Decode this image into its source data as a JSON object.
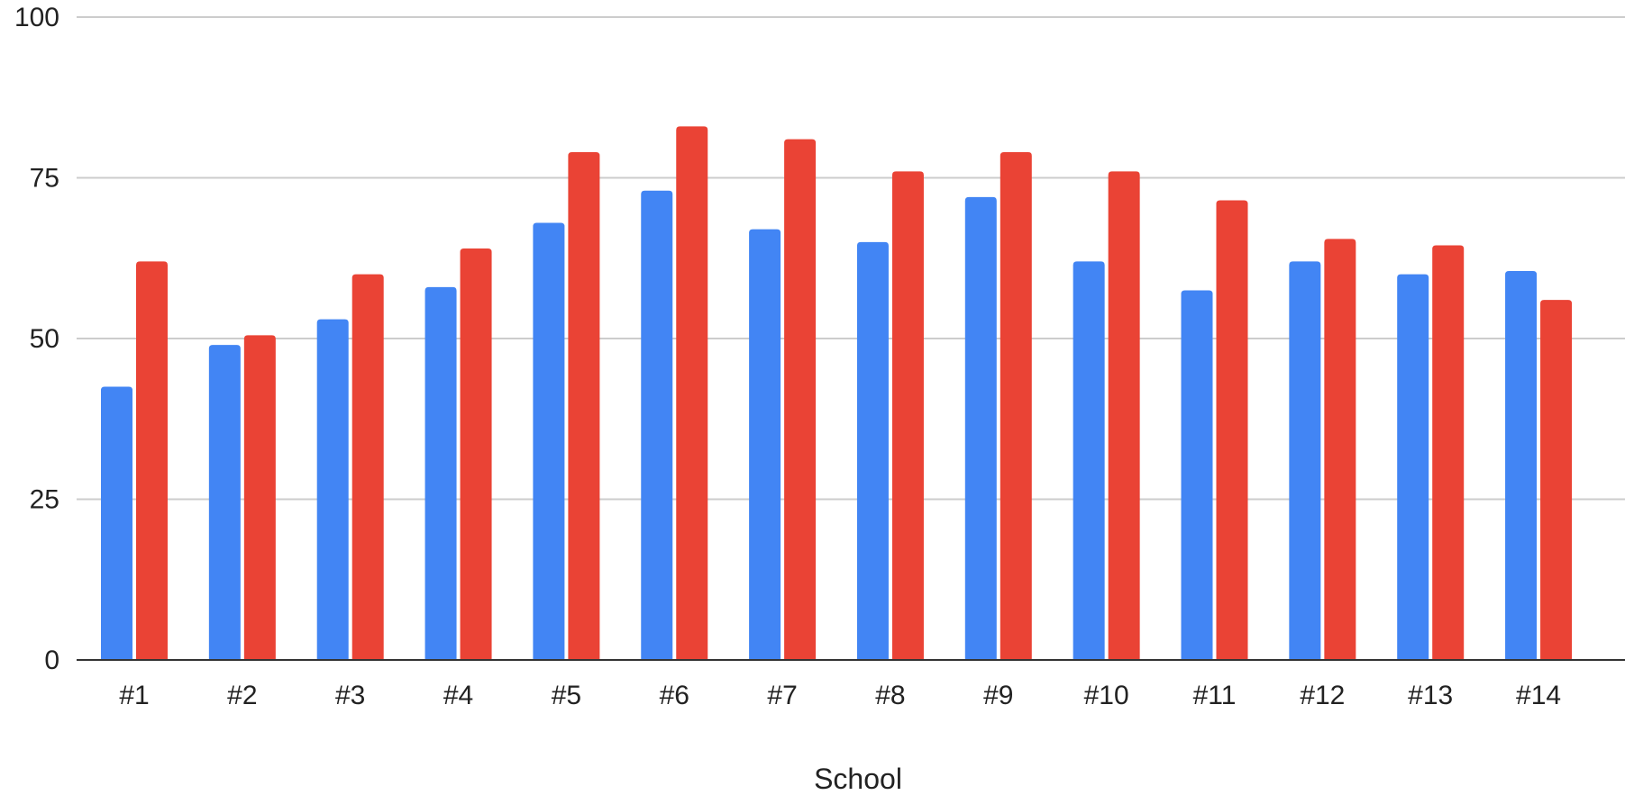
{
  "chart_data": {
    "type": "bar",
    "title": "",
    "xlabel": "School",
    "ylabel": "",
    "ylim": [
      0,
      100
    ],
    "yticks": [
      0,
      25,
      50,
      75,
      100
    ],
    "grid": true,
    "legend": "none",
    "categories": [
      "#1",
      "#2",
      "#3",
      "#4",
      "#5",
      "#6",
      "#7",
      "#8",
      "#9",
      "#10",
      "#11",
      "#12",
      "#13",
      "#14"
    ],
    "series": [
      {
        "color": "#4285f4",
        "values": [
          42.5,
          49,
          53,
          58,
          68,
          73,
          67,
          65,
          72,
          62,
          57.5,
          62,
          60,
          60.5
        ]
      },
      {
        "color": "#ea4335",
        "values": [
          62,
          50.5,
          60,
          64,
          79,
          83,
          81,
          76,
          79,
          76,
          71.5,
          65.5,
          64.5,
          56
        ]
      }
    ]
  }
}
